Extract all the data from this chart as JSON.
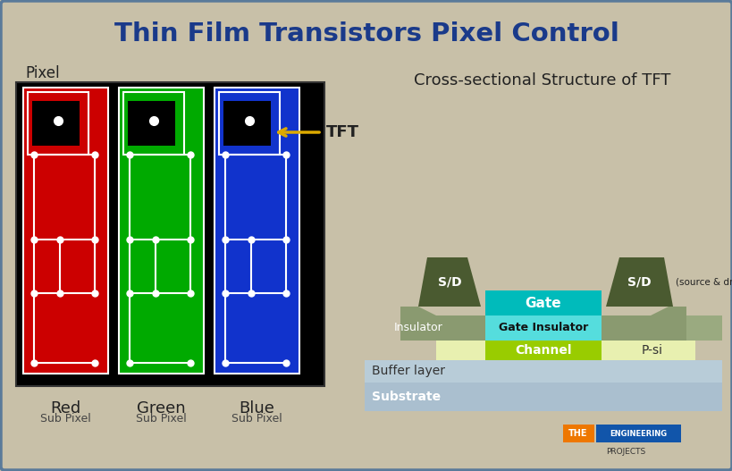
{
  "title": "Thin Film Transistors Pixel Control",
  "title_color": "#1a3a8a",
  "bg_color": "#c8c0a8",
  "border_color": "#5a7a9a",
  "pixel_label": "Pixel",
  "subpixel_labels": [
    "Red",
    "Green",
    "Blue"
  ],
  "subpixel_sublabels": [
    "Sub Pixel",
    "Sub Pixel",
    "Sub Pixel"
  ],
  "subpixel_colors": [
    "#cc0000",
    "#00aa00",
    "#1133cc"
  ],
  "cross_section_title": "Cross-sectional Structure of TFT",
  "tft_arrow_label": "TFT",
  "layers": {
    "substrate_color": "#aabfcf",
    "buffer_color": "#b8ccd8",
    "psi_color": "#e8f0b0",
    "channel_color": "#99cc00",
    "gate_insulator_color": "#55dddd",
    "gate_color": "#00bbbb",
    "insulator_color": "#8a9a70",
    "sd_color": "#4a5a30",
    "bg_insulator_color": "#9aaa80"
  }
}
